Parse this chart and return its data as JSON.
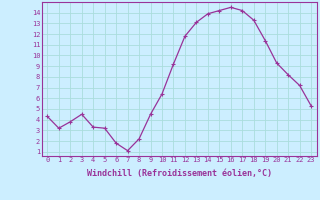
{
  "x": [
    0,
    1,
    2,
    3,
    4,
    5,
    6,
    7,
    8,
    9,
    10,
    11,
    12,
    13,
    14,
    15,
    16,
    17,
    18,
    19,
    20,
    21,
    22,
    23
  ],
  "y": [
    4.3,
    3.2,
    3.8,
    4.5,
    3.3,
    3.2,
    1.8,
    1.1,
    2.2,
    4.5,
    6.4,
    9.2,
    11.8,
    13.1,
    13.9,
    14.2,
    14.5,
    14.2,
    13.3,
    11.4,
    9.3,
    8.2,
    7.2,
    5.3
  ],
  "line_color": "#993399",
  "marker": "+",
  "marker_size": 3,
  "marker_color": "#993399",
  "background_color": "#cceeff",
  "grid_color": "#aadddd",
  "xlabel": "Windchill (Refroidissement éolien,°C)",
  "xlabel_color": "#993399",
  "tick_color": "#993399",
  "xlim": [
    -0.5,
    23.5
  ],
  "ylim": [
    0.6,
    15.0
  ],
  "yticks": [
    1,
    2,
    3,
    4,
    5,
    6,
    7,
    8,
    9,
    10,
    11,
    12,
    13,
    14
  ],
  "xticks": [
    0,
    1,
    2,
    3,
    4,
    5,
    6,
    7,
    8,
    9,
    10,
    11,
    12,
    13,
    14,
    15,
    16,
    17,
    18,
    19,
    20,
    21,
    22,
    23
  ],
  "axis_bg": "#cceeff",
  "spine_color": "#993399",
  "label_fontsize": 6.0,
  "tick_fontsize": 5.0,
  "linewidth": 0.9
}
